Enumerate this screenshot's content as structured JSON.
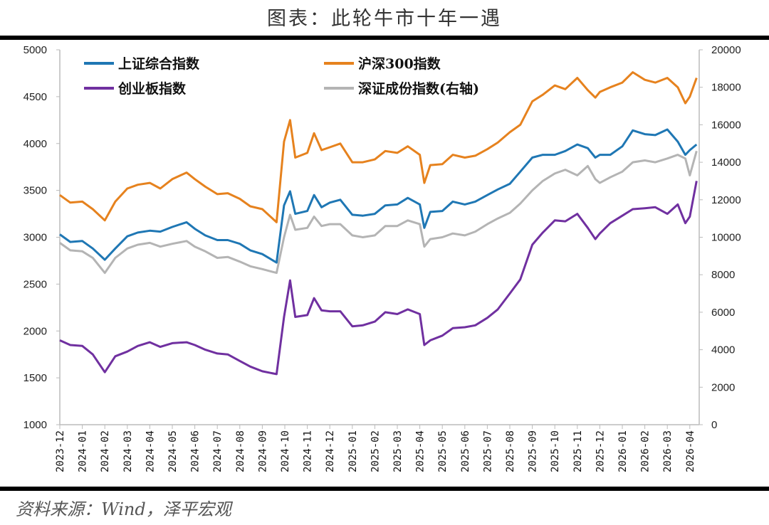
{
  "title": "图表：此轮牛市十年一遇",
  "source": "资料来源：Wind，泽平宏观",
  "chart_data": {
    "type": "line",
    "title": "图表：此轮牛市十年一遇",
    "left_axis": {
      "min": 1000,
      "max": 5000,
      "ticks": [
        1000,
        1500,
        2000,
        2500,
        3000,
        3500,
        4000,
        4500,
        5000
      ]
    },
    "right_axis": {
      "min": 0,
      "max": 20000,
      "ticks": [
        0,
        2000,
        4000,
        6000,
        8000,
        10000,
        12000,
        14000,
        16000,
        18000,
        20000
      ]
    },
    "x_ticks": [
      "2023-12",
      "2024-01",
      "2024-02",
      "2024-03",
      "2024-04",
      "2024-05",
      "2024-06",
      "2024-07",
      "2024-08",
      "2024-09",
      "2024-10",
      "2024-11",
      "2024-12",
      "2025-01",
      "2025-02",
      "2025-03",
      "2025-04",
      "2025-05",
      "2025-06",
      "2025-07",
      "2025-08",
      "2025-09",
      "2025-10",
      "2025-11",
      "2025-12",
      "2026-01",
      "2026-02",
      "2026-03",
      "2026-04"
    ],
    "grid": false,
    "legend_placement": "top-left",
    "x": [
      "2023-12-01",
      "2023-12-15",
      "2024-01-01",
      "2024-01-15",
      "2024-02-01",
      "2024-02-15",
      "2024-03-01",
      "2024-03-15",
      "2024-04-01",
      "2024-04-15",
      "2024-05-01",
      "2024-05-20",
      "2024-06-01",
      "2024-06-15",
      "2024-07-01",
      "2024-07-15",
      "2024-08-01",
      "2024-08-15",
      "2024-09-01",
      "2024-09-20",
      "2024-09-30",
      "2024-10-08",
      "2024-10-15",
      "2024-11-01",
      "2024-11-10",
      "2024-11-20",
      "2024-12-01",
      "2024-12-15",
      "2025-01-01",
      "2025-01-15",
      "2025-02-01",
      "2025-02-15",
      "2025-03-01",
      "2025-03-15",
      "2025-04-01",
      "2025-04-07",
      "2025-04-15",
      "2025-05-01",
      "2025-05-15",
      "2025-06-01",
      "2025-06-15",
      "2025-07-01",
      "2025-07-15",
      "2025-08-01",
      "2025-08-15",
      "2025-09-01",
      "2025-09-15",
      "2025-10-01",
      "2025-10-15",
      "2025-11-01",
      "2025-11-15",
      "2025-11-25",
      "2025-12-01",
      "2025-12-15",
      "2026-01-01",
      "2026-01-15",
      "2026-02-01",
      "2026-02-15",
      "2026-03-01",
      "2026-03-15",
      "2026-03-25",
      "2026-04-01",
      "2026-04-10"
    ],
    "series": [
      {
        "name": "上证综合指数",
        "axis": "left",
        "color": "#1f77b4",
        "values": [
          3030,
          2950,
          2960,
          2880,
          2760,
          2880,
          3010,
          3050,
          3070,
          3060,
          3110,
          3160,
          3090,
          3020,
          2970,
          2970,
          2930,
          2860,
          2820,
          2730,
          3340,
          3490,
          3250,
          3280,
          3450,
          3320,
          3370,
          3400,
          3240,
          3230,
          3250,
          3340,
          3350,
          3420,
          3350,
          3100,
          3270,
          3280,
          3380,
          3350,
          3380,
          3450,
          3510,
          3570,
          3700,
          3850,
          3880,
          3880,
          3920,
          3990,
          3950,
          3850,
          3880,
          3880,
          3970,
          4140,
          4100,
          4090,
          4150,
          4020,
          3880,
          3930,
          3990
        ]
      },
      {
        "name": "沪深300指数",
        "axis": "left",
        "color": "#e6821e",
        "values": [
          3450,
          3370,
          3380,
          3300,
          3180,
          3380,
          3520,
          3560,
          3580,
          3520,
          3620,
          3690,
          3620,
          3540,
          3460,
          3470,
          3410,
          3330,
          3300,
          3160,
          4020,
          4250,
          3850,
          3900,
          4110,
          3930,
          3960,
          4000,
          3800,
          3800,
          3830,
          3920,
          3900,
          3970,
          3880,
          3580,
          3770,
          3780,
          3880,
          3850,
          3870,
          3940,
          4010,
          4120,
          4200,
          4450,
          4520,
          4620,
          4580,
          4700,
          4570,
          4490,
          4550,
          4600,
          4650,
          4760,
          4680,
          4650,
          4700,
          4600,
          4430,
          4500,
          4700
        ]
      },
      {
        "name": "创业板指数",
        "axis": "left",
        "color": "#7030a0",
        "values": [
          1900,
          1850,
          1840,
          1750,
          1560,
          1730,
          1780,
          1840,
          1880,
          1830,
          1870,
          1880,
          1850,
          1800,
          1760,
          1750,
          1680,
          1620,
          1570,
          1540,
          2150,
          2540,
          2150,
          2170,
          2350,
          2220,
          2210,
          2210,
          2050,
          2060,
          2100,
          2200,
          2180,
          2230,
          2180,
          1850,
          1900,
          1950,
          2030,
          2040,
          2060,
          2140,
          2230,
          2400,
          2550,
          2920,
          3050,
          3180,
          3170,
          3250,
          3100,
          2980,
          3040,
          3150,
          3230,
          3300,
          3310,
          3320,
          3250,
          3350,
          3150,
          3220,
          3600
        ]
      },
      {
        "name": "深证成份指数(右轴)",
        "axis": "right",
        "color": "#b4b4b4",
        "values": [
          9700,
          9300,
          9250,
          8900,
          8100,
          8900,
          9400,
          9600,
          9700,
          9500,
          9650,
          9800,
          9500,
          9250,
          8900,
          8950,
          8700,
          8450,
          8300,
          8100,
          10000,
          11200,
          10400,
          10500,
          11100,
          10600,
          10700,
          10700,
          10100,
          10000,
          10100,
          10600,
          10600,
          10900,
          10700,
          9500,
          9900,
          10000,
          10200,
          10100,
          10300,
          10700,
          11000,
          11300,
          11800,
          12500,
          13000,
          13400,
          13600,
          13300,
          13800,
          13100,
          12900,
          13200,
          13500,
          14000,
          14100,
          14000,
          14200,
          14400,
          14200,
          13300,
          14600
        ]
      }
    ]
  }
}
